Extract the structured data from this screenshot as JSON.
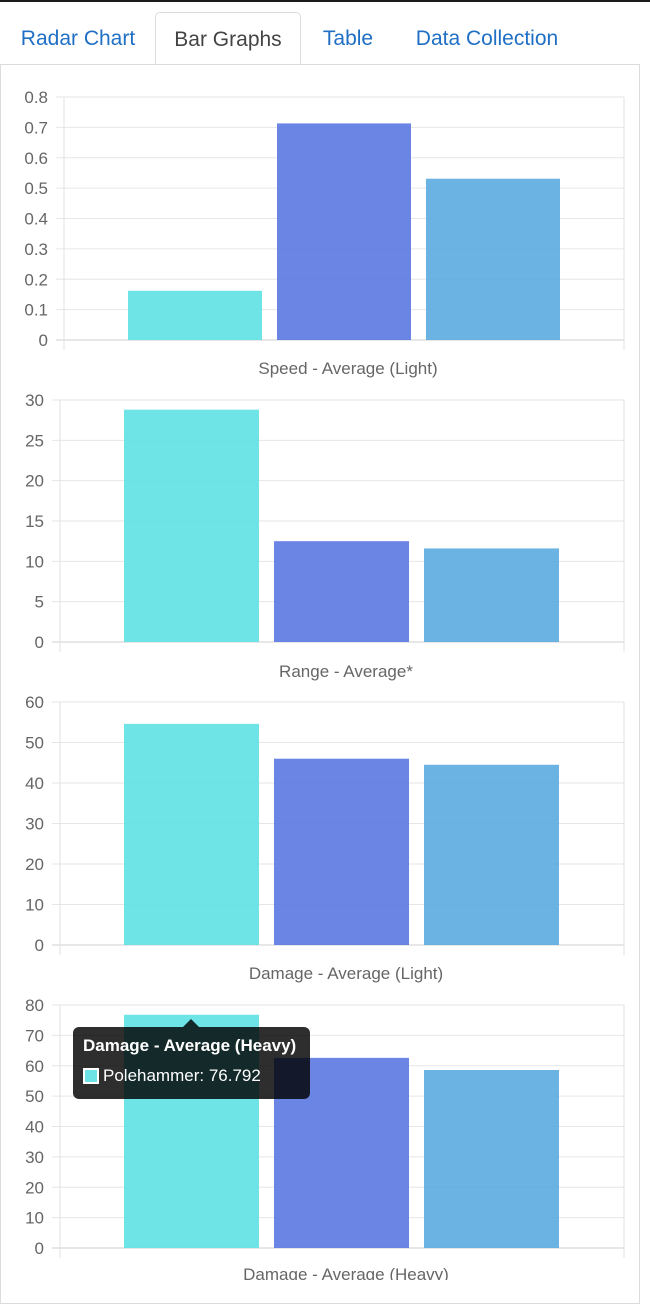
{
  "tabs": [
    {
      "label": "Radar Chart",
      "active": false
    },
    {
      "label": "Bar Graphs",
      "active": true
    },
    {
      "label": "Table",
      "active": false
    },
    {
      "label": "Data Collection",
      "active": false
    }
  ],
  "colors": {
    "series_1": "#5ee1e3",
    "series_2": "#5b78e2",
    "series_3": "#5aabdf",
    "grid": "#e6e6e6",
    "tab_link": "#1f6fc5"
  },
  "chart_data": [
    {
      "type": "bar",
      "xlabel": "Speed - Average (Light)",
      "values": [
        0.162,
        0.713,
        0.531
      ],
      "ylim": [
        0,
        0.8
      ],
      "yticks": [
        "0.8",
        "0.7",
        "0.6",
        "0.5",
        "0.4",
        "0.3",
        "0.2",
        "0.1",
        "0"
      ],
      "grid": true
    },
    {
      "type": "bar",
      "xlabel": "Range - Average*",
      "values": [
        28.8,
        12.5,
        11.6
      ],
      "ylim": [
        0,
        30
      ],
      "yticks": [
        "30",
        "25",
        "20",
        "15",
        "10",
        "5",
        "0"
      ],
      "grid": true
    },
    {
      "type": "bar",
      "xlabel": "Damage - Average (Light)",
      "values": [
        54.6,
        46.0,
        44.5
      ],
      "ylim": [
        0,
        60
      ],
      "yticks": [
        "60",
        "50",
        "40",
        "30",
        "20",
        "10",
        "0"
      ],
      "grid": true
    },
    {
      "type": "bar",
      "xlabel": "Damage - Average (Heavy)",
      "values": [
        76.792,
        62.6,
        58.6
      ],
      "ylim": [
        0,
        80
      ],
      "yticks": [
        "80",
        "70",
        "60",
        "50",
        "40",
        "30",
        "20",
        "10",
        "0"
      ],
      "grid": true
    }
  ],
  "tooltip": {
    "title": "Damage - Average (Heavy)",
    "label": "Polehammer: 76.792"
  }
}
